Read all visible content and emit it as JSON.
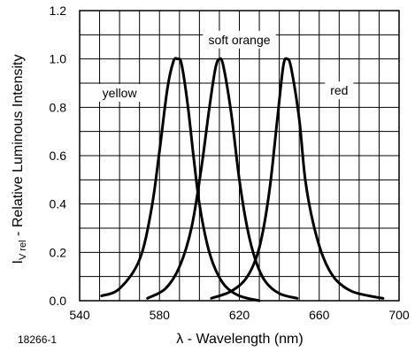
{
  "figure_id": "18266-1",
  "chart_data": {
    "type": "line",
    "xlabel": "λ - Wavelength (nm)",
    "ylabel_main": "I",
    "ylabel_sub": "V rel",
    "ylabel_rest": " - Relative Luminous Intensity",
    "xlim": [
      540,
      700
    ],
    "ylim": [
      0,
      1.2
    ],
    "x_ticks": [
      "540",
      "580",
      "620",
      "660",
      "700"
    ],
    "y_ticks": [
      "0.0",
      "0.2",
      "0.4",
      "0.6",
      "0.8",
      "1.0",
      "1.2"
    ],
    "grid": true,
    "series": [
      {
        "name": "yellow",
        "label_pos": [
          560,
          0.86
        ],
        "points": [
          [
            551,
            0.02
          ],
          [
            560,
            0.05
          ],
          [
            570,
            0.17
          ],
          [
            576,
            0.38
          ],
          [
            580,
            0.62
          ],
          [
            584,
            0.88
          ],
          [
            587,
            0.99
          ],
          [
            589,
            1.0
          ],
          [
            591,
            0.98
          ],
          [
            594,
            0.82
          ],
          [
            597,
            0.6
          ],
          [
            600,
            0.4
          ],
          [
            604,
            0.23
          ],
          [
            608,
            0.13
          ],
          [
            613,
            0.06
          ],
          [
            620,
            0.02
          ],
          [
            630,
            0.0
          ]
        ]
      },
      {
        "name": "soft orange",
        "label_pos": [
          620,
          1.08
        ],
        "points": [
          [
            574,
            0.01
          ],
          [
            583,
            0.05
          ],
          [
            590,
            0.14
          ],
          [
            596,
            0.3
          ],
          [
            601,
            0.55
          ],
          [
            605,
            0.8
          ],
          [
            608,
            0.96
          ],
          [
            610,
            1.0
          ],
          [
            612,
            0.97
          ],
          [
            616,
            0.77
          ],
          [
            620,
            0.5
          ],
          [
            624,
            0.3
          ],
          [
            628,
            0.17
          ],
          [
            633,
            0.08
          ],
          [
            640,
            0.03
          ],
          [
            649,
            0.01
          ]
        ]
      },
      {
        "name": "red",
        "label_pos": [
          670,
          0.87
        ],
        "points": [
          [
            606,
            0.01
          ],
          [
            616,
            0.04
          ],
          [
            624,
            0.1
          ],
          [
            630,
            0.22
          ],
          [
            635,
            0.45
          ],
          [
            639,
            0.75
          ],
          [
            642,
            0.97
          ],
          [
            644,
            1.0
          ],
          [
            646,
            0.96
          ],
          [
            650,
            0.75
          ],
          [
            653,
            0.5
          ],
          [
            657,
            0.32
          ],
          [
            662,
            0.18
          ],
          [
            668,
            0.09
          ],
          [
            676,
            0.04
          ],
          [
            685,
            0.02
          ],
          [
            692,
            0.01
          ]
        ]
      }
    ]
  }
}
